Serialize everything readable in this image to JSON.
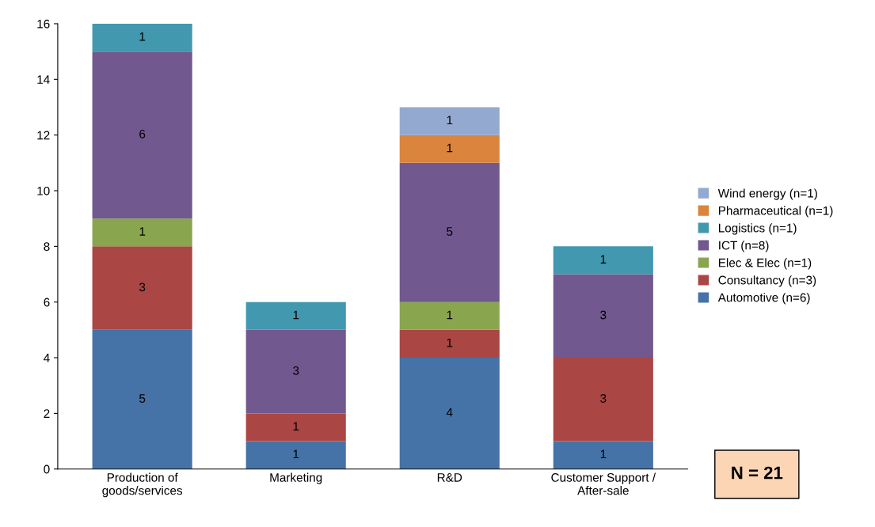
{
  "chart_data": {
    "type": "bar",
    "stacked": true,
    "categories": [
      "Production of\ngoods/services",
      "Marketing",
      "R&D",
      "Customer Support /\nAfter-sale"
    ],
    "series": [
      {
        "name": "Automotive (n=6)",
        "color": "#4572a7",
        "values": [
          5,
          1,
          4,
          1
        ]
      },
      {
        "name": "Consultancy (n=3)",
        "color": "#aa4643",
        "values": [
          3,
          1,
          1,
          3
        ]
      },
      {
        "name": "Elec & Elec (n=1)",
        "color": "#89a54e",
        "values": [
          1,
          null,
          1,
          null
        ]
      },
      {
        "name": "ICT (n=8)",
        "color": "#71588f",
        "values": [
          6,
          3,
          5,
          3
        ]
      },
      {
        "name": "Logistics (n=1)",
        "color": "#4198af",
        "values": [
          1,
          1,
          null,
          1
        ]
      },
      {
        "name": "Pharmaceutical (n=1)",
        "color": "#db843d",
        "values": [
          null,
          null,
          1,
          null
        ]
      },
      {
        "name": "Wind energy (n=1)",
        "color": "#93a9cf",
        "values": [
          null,
          null,
          1,
          null
        ]
      }
    ],
    "ylim": [
      0,
      16
    ],
    "yticks": [
      0,
      2,
      4,
      6,
      8,
      10,
      12,
      14,
      16
    ],
    "data_labels": true,
    "legend": "right",
    "grid": false,
    "annotations": [
      "N = 21"
    ]
  }
}
